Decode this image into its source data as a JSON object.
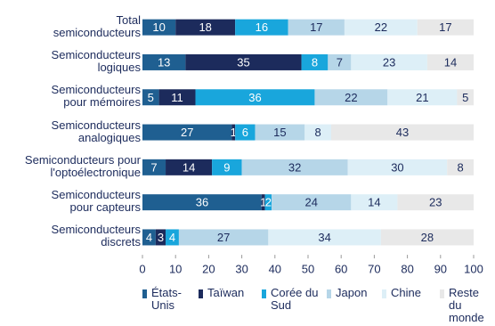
{
  "chart_data": {
    "type": "stacked-bar-horizontal",
    "categories": [
      "Total\nsemiconducteurs",
      "Semiconducteurs\nlogiques",
      "Semiconducteurs\npour mémoires",
      "Semiconducteurs\nanalogiques",
      "Semiconducteurs pour\nl'optoélectronique",
      "Semiconducteurs\npour capteurs",
      "Semiconducteurs\ndiscrets"
    ],
    "series": [
      {
        "name": "États-\nUnis",
        "color": "#1f5f91",
        "values": [
          10,
          13,
          5,
          27,
          7,
          36,
          4
        ]
      },
      {
        "name": "Taïwan",
        "color": "#1c2b5c",
        "values": [
          18,
          35,
          11,
          1,
          14,
          1,
          3
        ]
      },
      {
        "name": "Corée du\nSud",
        "color": "#19a6dc",
        "values": [
          16,
          8,
          36,
          6,
          9,
          2,
          4
        ]
      },
      {
        "name": "Japon",
        "color": "#b6d6e8",
        "values": [
          17,
          7,
          22,
          15,
          32,
          24,
          27
        ]
      },
      {
        "name": "Chine",
        "color": "#ddeff7",
        "values": [
          22,
          23,
          21,
          8,
          30,
          14,
          34
        ]
      },
      {
        "name": "Reste du\nmonde",
        "color": "#e8e8e8",
        "values": [
          17,
          14,
          5,
          43,
          8,
          23,
          28
        ]
      }
    ],
    "xlim": [
      0,
      100
    ],
    "xticks": [
      0,
      10,
      20,
      30,
      40,
      50,
      60,
      70,
      80,
      90,
      100
    ]
  }
}
